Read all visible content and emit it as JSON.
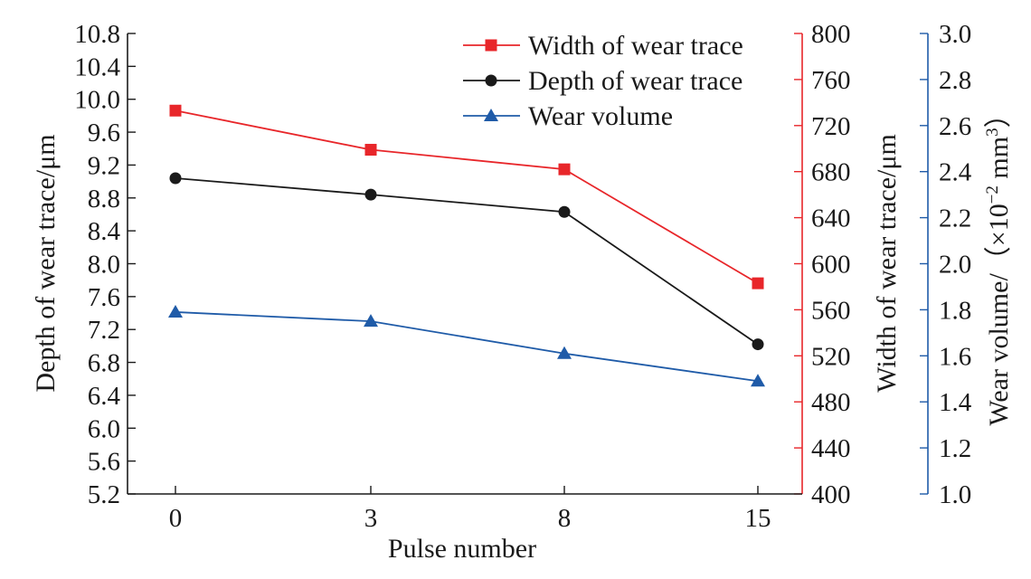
{
  "chart_data": {
    "type": "line",
    "categories": [
      "0",
      "3",
      "8",
      "15"
    ],
    "xlabel": "Pulse number",
    "axes": {
      "left": {
        "label": "Depth of wear trace/μm",
        "range": [
          5.2,
          10.8
        ],
        "ticks": [
          "5.2",
          "5.6",
          "6.0",
          "6.4",
          "6.8",
          "7.2",
          "7.6",
          "8.0",
          "8.4",
          "8.8",
          "9.2",
          "9.6",
          "10.0",
          "10.4",
          "10.8"
        ]
      },
      "right1": {
        "label": "Width of wear trace/μm",
        "range": [
          400,
          800
        ],
        "ticks": [
          "400",
          "440",
          "480",
          "520",
          "560",
          "600",
          "640",
          "680",
          "720",
          "760",
          "800"
        ],
        "color": "#e8262a"
      },
      "right2": {
        "label_prefix": "Wear volume/（×10",
        "label_exp1": "−2",
        "label_mid": " mm",
        "label_exp2": "3",
        "label_suffix": "）",
        "range": [
          1.0,
          3.0
        ],
        "ticks": [
          "1.0",
          "1.2",
          "1.4",
          "1.6",
          "1.8",
          "2.0",
          "2.2",
          "2.4",
          "2.6",
          "2.8",
          "3.0"
        ],
        "color": "#1f5ba8"
      }
    },
    "series": [
      {
        "name": "Width of wear trace",
        "axis": "right1",
        "marker": "square",
        "color": "#e8262a",
        "values": [
          733,
          699,
          682,
          583
        ]
      },
      {
        "name": "Depth of wear trace",
        "axis": "left",
        "marker": "circle",
        "color": "#1a1a1a",
        "values": [
          9.04,
          8.84,
          8.63,
          7.02
        ]
      },
      {
        "name": "Wear volume",
        "axis": "right2",
        "marker": "triangle",
        "color": "#1f5ba8",
        "values": [
          1.79,
          1.75,
          1.61,
          1.49
        ]
      }
    ],
    "legend": "top-right",
    "grid": false
  }
}
